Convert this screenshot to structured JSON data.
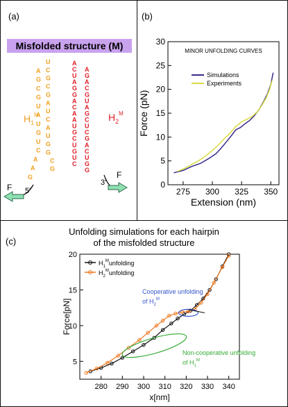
{
  "panel_a": {
    "label": "(a)",
    "banner": "Misfolded structure (M)",
    "hairpin1_label": "H",
    "hairpin1_sub": "1",
    "hairpin1_sup": "M",
    "hairpin2_label": "H",
    "hairpin2_sub": "2",
    "hairpin2_sup": "M",
    "force_left": "F",
    "force_right": "F",
    "end5": "5'",
    "end3": "3'",
    "colors": {
      "hairpin1": "#f0a020",
      "hairpin2": "#e0202a",
      "arrow": "#8fe0b0"
    },
    "hairpin1_seq": [
      "G",
      "A",
      "A",
      "C",
      "U",
      "G",
      "U",
      "A",
      "U",
      "G",
      "C",
      "G",
      "A",
      "U",
      "C",
      "G",
      "C",
      "G",
      "A",
      "U",
      "C",
      "A",
      "U",
      "G",
      "G",
      "C",
      "G"
    ],
    "hairpin2_seq": [
      "A",
      "C",
      "U",
      "A",
      "G",
      "G",
      "A",
      "C",
      "A",
      "A",
      "U",
      "G",
      "C",
      "U",
      "G",
      "U",
      "C",
      "G",
      "G",
      "U",
      "C",
      "A",
      "G",
      "C",
      "U",
      "C",
      "G",
      "A",
      "U",
      "G",
      "C",
      "A",
      "G",
      "A"
    ]
  },
  "chart_data": [
    {
      "type": "line",
      "panel_label": "(b)",
      "annotation": "MINOR UNFOLDING CURVES",
      "xlabel": "Extension (nm)",
      "ylabel": "Force (pN)",
      "xlim": [
        262,
        357
      ],
      "ylim": [
        0,
        30
      ],
      "xticks": [
        275,
        300,
        325,
        350
      ],
      "yticks": [
        0,
        5,
        10,
        15,
        20,
        25,
        30
      ],
      "legend_position": "top-left",
      "series": [
        {
          "name": "Simulations",
          "color": "#3a2a8c",
          "x": [
            267,
            275,
            282,
            290,
            297,
            303,
            308,
            312,
            316,
            320,
            324,
            328,
            332,
            336,
            340,
            344,
            347,
            350,
            352
          ],
          "y": [
            2.5,
            3.0,
            3.8,
            4.5,
            5.5,
            6.5,
            7.8,
            9.0,
            10.2,
            11.5,
            12.0,
            12.8,
            13.5,
            14.5,
            15.8,
            17.5,
            19.0,
            21.0,
            23.5
          ]
        },
        {
          "name": "Experiments",
          "color": "#d8dc40",
          "x": [
            270,
            276,
            282,
            288,
            294,
            300,
            305,
            310,
            315,
            320,
            325,
            330,
            334,
            338,
            342,
            346,
            349,
            351
          ],
          "y": [
            2.8,
            3.4,
            4.2,
            5.0,
            6.0,
            7.2,
            8.3,
            9.6,
            10.8,
            12.2,
            13.2,
            13.8,
            14.3,
            15.2,
            16.5,
            18.2,
            20.0,
            21.8
          ]
        }
      ]
    },
    {
      "type": "line",
      "panel_label": "(c)",
      "title_line1": "Unfolding simulations for each hairpin",
      "title_line2": "of the misfolded structure",
      "xlabel": "x[nm]",
      "ylabel": "Force[pN]",
      "xlim": [
        270,
        345
      ],
      "ylim": [
        2.5,
        20
      ],
      "xticks": [
        280,
        290,
        300,
        310,
        320,
        330,
        340
      ],
      "yticks": [
        5,
        10,
        15,
        20
      ],
      "legend_position": "top-left",
      "series": [
        {
          "name": "unfolding",
          "legend_symbol": "H",
          "legend_sub": "1",
          "legend_sup": "M",
          "color": "#111111",
          "x": [
            275,
            280,
            285,
            290,
            295,
            300,
            305,
            309,
            313,
            316,
            319,
            322,
            325,
            328,
            331,
            334,
            337,
            340
          ],
          "y": [
            3.6,
            4.1,
            4.7,
            5.5,
            6.4,
            7.3,
            8.3,
            9.4,
            10.3,
            11.0,
            11.6,
            12.1,
            12.9,
            13.8,
            15.0,
            16.5,
            18.3,
            20.0
          ]
        },
        {
          "name": "unfolding",
          "legend_symbol": "H",
          "legend_sub": "2",
          "legend_sup": "M",
          "color": "#f07820",
          "x": [
            273,
            278,
            283,
            288,
            293,
            298,
            302,
            306,
            309,
            312,
            315,
            318,
            321,
            324,
            327,
            330,
            333,
            337,
            340
          ],
          "y": [
            3.4,
            4.0,
            4.8,
            5.8,
            6.9,
            8.0,
            9.0,
            10.0,
            10.7,
            11.4,
            11.7,
            11.9,
            12.0,
            12.3,
            13.2,
            14.4,
            16.0,
            18.2,
            19.8
          ]
        }
      ],
      "annotations": [
        {
          "text": "Cooperative unfolding",
          "line2": "of H",
          "sub": "2",
          "sup": "M",
          "color": "#3355cc"
        },
        {
          "text": "Non-cooperative unfolding",
          "line2": "of H",
          "sub": "1",
          "sup": "M",
          "color": "#33aa33"
        }
      ]
    }
  ]
}
